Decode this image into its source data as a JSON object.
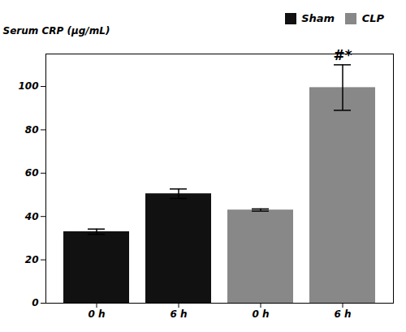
{
  "chart_data": {
    "type": "bar",
    "categories": [
      "0 h",
      "6 h",
      "0 h",
      "6 h"
    ],
    "series": [
      {
        "name": "Sham",
        "color": "#111111",
        "values": [
          33.0,
          50.5,
          null,
          null
        ],
        "errors": [
          1.2,
          2.2,
          null,
          null
        ]
      },
      {
        "name": "CLP",
        "color": "#888888",
        "values": [
          null,
          null,
          43.0,
          99.5
        ],
        "errors": [
          null,
          null,
          0.5,
          10.5
        ]
      }
    ],
    "ylabel": "Serum CRP (μg/mL)",
    "ylim": [
      0,
      115
    ],
    "yticks": [
      0,
      20,
      40,
      60,
      80,
      100
    ],
    "legend": "upper right",
    "annotations": [
      {
        "text": "#*",
        "bar": 3
      }
    ]
  }
}
